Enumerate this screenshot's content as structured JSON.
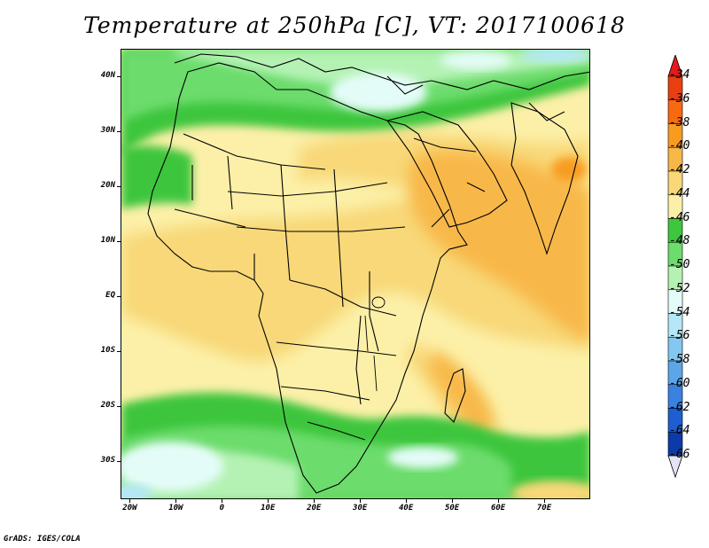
{
  "title": "Temperature at 250hPa [C], VT: 2017100618",
  "credit": "GrADS: IGES/COLA",
  "lat_labels": [
    {
      "text": "40N",
      "lat": 40
    },
    {
      "text": "30N",
      "lat": 30
    },
    {
      "text": "20N",
      "lat": 20
    },
    {
      "text": "10N",
      "lat": 10
    },
    {
      "text": "EQ",
      "lat": 0
    },
    {
      "text": "10S",
      "lat": -10
    },
    {
      "text": "20S",
      "lat": -20
    },
    {
      "text": "30S",
      "lat": -30
    }
  ],
  "lon_labels": [
    {
      "text": "20W",
      "lon": -20
    },
    {
      "text": "10W",
      "lon": -10
    },
    {
      "text": "0",
      "lon": 0
    },
    {
      "text": "10E",
      "lon": 10
    },
    {
      "text": "20E",
      "lon": 20
    },
    {
      "text": "30E",
      "lon": 30
    },
    {
      "text": "40E",
      "lon": 40
    },
    {
      "text": "50E",
      "lon": 50
    },
    {
      "text": "60E",
      "lon": 60
    },
    {
      "text": "70E",
      "lon": 70
    }
  ],
  "map_extent": {
    "lon": [
      -22,
      80
    ],
    "lat": [
      -37,
      45
    ]
  },
  "colorbar": {
    "labels": [
      "-34",
      "-36",
      "-38",
      "-40",
      "-42",
      "-44",
      "-46",
      "-48",
      "-50",
      "-52",
      "-54",
      "-56",
      "-58",
      "-60",
      "-62",
      "-64",
      "-66"
    ],
    "colors": [
      "#e84010",
      "#f86a10",
      "#f89c20",
      "#f8b848",
      "#f8d878",
      "#fcf0a8",
      "#3ec63e",
      "#6cdc6c",
      "#b4f2b4",
      "#e4fcf8",
      "#b4e8f8",
      "#82c8f0",
      "#5ca6e8",
      "#3a82e0",
      "#1e5ed0",
      "#0c3aa8",
      "#08166e"
    ],
    "top_arrow_color": "#e41a1c",
    "bottom_arrow_color": "#e4e4f8"
  }
}
